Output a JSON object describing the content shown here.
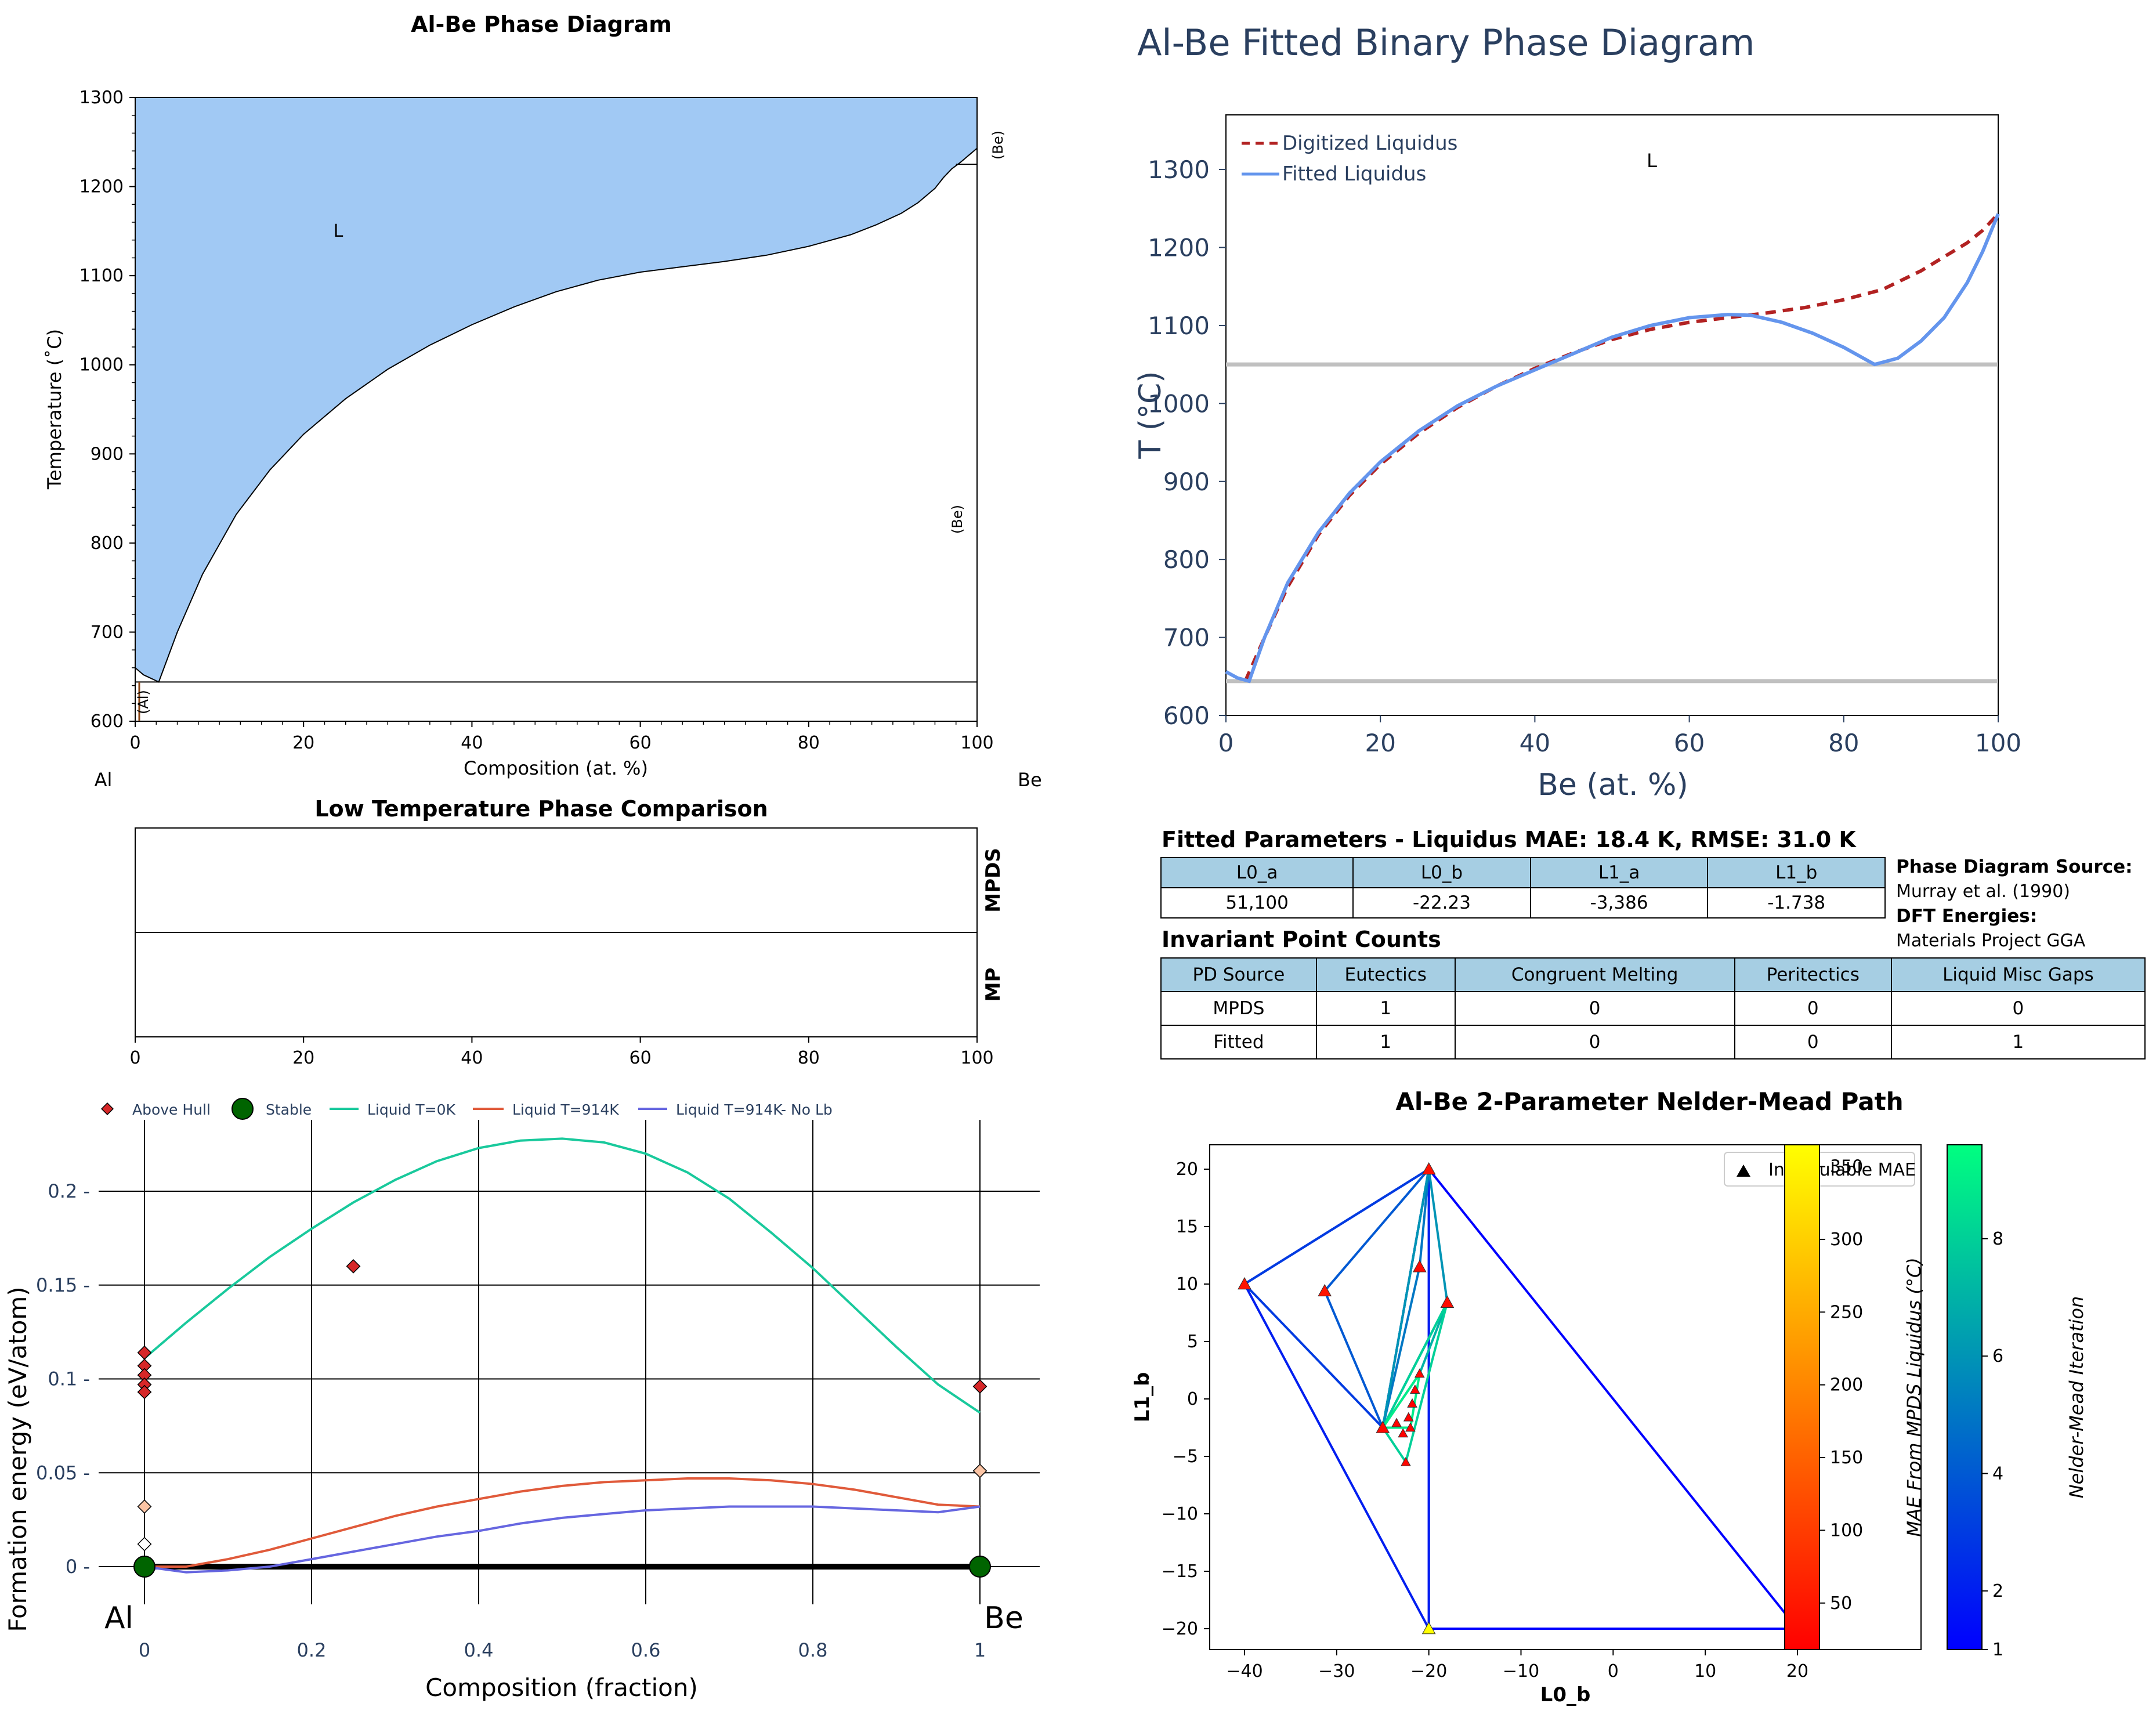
{
  "pd": {
    "title": "Al-Be Phase Diagram",
    "xlabel": "Composition (at. %)",
    "ylabel": "Temperature (˚C)",
    "left_element": "Al",
    "right_element": "Be",
    "liquid_label": "L",
    "al_label": "(Al)",
    "be_label": "(Be)",
    "colors": {
      "liquid": "#a1c9f4"
    }
  },
  "fit": {
    "title": "Al-Be Fitted Binary Phase Diagram",
    "xlabel": "Be (at. %)",
    "ylabel": "T (°C)",
    "liquid_label": "L",
    "colors": {
      "digitized": "#b22222",
      "fitted": "#6495ed",
      "invariant": "#c0c0c0"
    }
  },
  "lowt": {
    "title": "Low Temperature Phase Comparison",
    "row1": "MPDS",
    "row2": "MP"
  },
  "hull": {
    "xlabel": "Composition (fraction)",
    "ylabel": "Formation energy (eV/atom)",
    "left_element": "Al",
    "right_element": "Be",
    "colors": {
      "liquid0": "#19c99c",
      "liquid914": "#e05a3a",
      "nolb": "#6666e0",
      "stable": "#006400",
      "above": "#d62728"
    }
  },
  "nm": {
    "title": "Al-Be 2-Parameter Nelder-Mead Path",
    "xlabel": "L0_b",
    "ylabel": "L1_b",
    "legend": "Incalculable MAE",
    "cb1_label": "MAE From MPDS Liquidus (°C)",
    "cb2_label": "Nelder-Mead Iteration"
  },
  "params": {
    "title": "Fitted Parameters - Liquidus MAE: 18.4 K, RMSE: 31.0 K",
    "headers": [
      "L0_a",
      "L0_b",
      "L1_a",
      "L1_b"
    ],
    "values": [
      "51,100",
      "-22.23",
      "-3,386",
      "-1.738"
    ]
  },
  "source": {
    "pd_head": "Phase Diagram Source:",
    "pd_val": "Murray et al. (1990)",
    "dft_head": "DFT Energies:",
    "dft_val": "Materials Project GGA"
  },
  "inv": {
    "title": "Invariant Point Counts",
    "headers": [
      "PD Source",
      "Eutectics",
      "Congruent Melting",
      "Peritectics",
      "Liquid Misc Gaps"
    ],
    "rows": [
      [
        "MPDS",
        "1",
        "0",
        "0",
        "0"
      ],
      [
        "Fitted",
        "1",
        "0",
        "0",
        "1"
      ]
    ]
  },
  "chart_data": [
    {
      "type": "area",
      "title": "Al-Be Phase Diagram",
      "xlabel": "Composition (at. %)",
      "ylabel": "Temperature (˚C)",
      "xlim": [
        0,
        100
      ],
      "ylim": [
        600,
        1300
      ],
      "x_ticks": [
        0,
        20,
        40,
        60,
        80,
        100
      ],
      "y_ticks": [
        600,
        700,
        800,
        900,
        1000,
        1100,
        1200,
        1300
      ],
      "liquidus": {
        "x": [
          0,
          1,
          2.8,
          5,
          8,
          12,
          16,
          20,
          25,
          30,
          35,
          40,
          45,
          50,
          55,
          60,
          65,
          70,
          75,
          80,
          85,
          88,
          91,
          93,
          95,
          96,
          97,
          98,
          99,
          100
        ],
        "y": [
          660,
          652,
          644,
          700,
          765,
          832,
          882,
          922,
          962,
          995,
          1022,
          1045,
          1065,
          1082,
          1095,
          1104,
          1110,
          1116,
          1123,
          1133,
          1146,
          1157,
          1170,
          1182,
          1198,
          1210,
          1220,
          1227,
          1235,
          1243
        ]
      },
      "eutectic_T": 644,
      "be_transition_T": 1225
    },
    {
      "type": "line",
      "title": "Al-Be Fitted Binary Phase Diagram",
      "xlabel": "Be (at. %)",
      "ylabel": "T (°C)",
      "xlim": [
        0,
        100
      ],
      "ylim": [
        600,
        1370
      ],
      "x_ticks": [
        0,
        20,
        40,
        60,
        80,
        100
      ],
      "y_ticks": [
        600,
        700,
        800,
        900,
        1000,
        1100,
        1200,
        1300
      ],
      "legend": "top-left",
      "series": [
        {
          "name": "Digitized Liquidus",
          "style": "dashed",
          "x": [
            2.5,
            5,
            8,
            12,
            16,
            20,
            25,
            30,
            35,
            40,
            45,
            50,
            55,
            60,
            65,
            70,
            75,
            80,
            85,
            90,
            93,
            96,
            98,
            100
          ],
          "y": [
            644,
            700,
            765,
            832,
            882,
            922,
            962,
            995,
            1022,
            1045,
            1065,
            1082,
            1095,
            1104,
            1110,
            1116,
            1123,
            1133,
            1146,
            1170,
            1188,
            1206,
            1222,
            1243
          ]
        },
        {
          "name": "Fitted Liquidus",
          "style": "solid",
          "x": [
            0,
            1.5,
            3,
            5,
            8,
            12,
            16,
            20,
            25,
            30,
            35,
            40,
            45,
            50,
            55,
            60,
            65,
            68,
            72,
            76,
            80,
            84,
            87,
            90,
            93,
            96,
            98,
            100
          ],
          "y": [
            656,
            648,
            644,
            700,
            770,
            835,
            885,
            925,
            965,
            997,
            1022,
            1043,
            1064,
            1085,
            1100,
            1110,
            1114,
            1113,
            1104,
            1090,
            1072,
            1050,
            1058,
            1080,
            1110,
            1155,
            1195,
            1243
          ]
        }
      ],
      "invariants": [
        1050,
        644
      ]
    },
    {
      "type": "table",
      "title": "Low Temperature Phase Comparison",
      "rows": [
        "MPDS",
        "MP"
      ],
      "xlim": [
        0,
        100
      ],
      "x_ticks": [
        0,
        20,
        40,
        60,
        80,
        100
      ]
    },
    {
      "type": "scatter",
      "xlabel": "Composition (fraction)",
      "ylabel": "Formation energy (eV/atom)",
      "xlim": [
        -0.01,
        1.07
      ],
      "ylim": [
        -0.02,
        0.24
      ],
      "x_ticks": [
        0,
        0.2,
        0.4,
        0.6,
        0.8,
        1
      ],
      "x_tick_labels": [
        "0",
        "0.2",
        "0.4",
        "0.6",
        "0.8",
        "1"
      ],
      "y_ticks": [
        0,
        0.05,
        0.1,
        0.15,
        0.2
      ],
      "y_tick_labels": [
        "0",
        "0.05",
        "0.1",
        "0.15",
        "0.2"
      ],
      "legend": "top",
      "series": [
        {
          "name": "Above Hull",
          "type": "scatter",
          "points": [
            [
              0,
              0.114
            ],
            [
              0,
              0.107
            ],
            [
              0,
              0.102
            ],
            [
              0,
              0.097
            ],
            [
              0,
              0.093
            ],
            [
              0.25,
              0.16
            ],
            [
              1,
              0.096
            ],
            [
              0,
              0.032
            ],
            [
              0,
              0.012
            ],
            [
              1,
              0.051
            ]
          ]
        },
        {
          "name": "Stable",
          "type": "scatter",
          "points": [
            [
              0,
              0
            ],
            [
              1,
              0
            ]
          ]
        },
        {
          "name": "Liquid T=0K",
          "type": "line",
          "x": [
            0,
            0.05,
            0.1,
            0.15,
            0.2,
            0.25,
            0.3,
            0.35,
            0.4,
            0.45,
            0.5,
            0.55,
            0.6,
            0.65,
            0.7,
            0.75,
            0.8,
            0.85,
            0.9,
            0.95,
            1
          ],
          "y": [
            0.111,
            0.13,
            0.148,
            0.165,
            0.18,
            0.194,
            0.206,
            0.216,
            0.223,
            0.227,
            0.228,
            0.226,
            0.22,
            0.21,
            0.196,
            0.178,
            0.159,
            0.138,
            0.117,
            0.097,
            0.082
          ]
        },
        {
          "name": "Liquid T=914K",
          "type": "line",
          "x": [
            0,
            0.05,
            0.1,
            0.15,
            0.2,
            0.25,
            0.3,
            0.35,
            0.4,
            0.45,
            0.5,
            0.55,
            0.6,
            0.65,
            0.7,
            0.75,
            0.8,
            0.85,
            0.9,
            0.95,
            1
          ],
          "y": [
            0,
            0.0,
            0.004,
            0.009,
            0.015,
            0.021,
            0.027,
            0.032,
            0.036,
            0.04,
            0.043,
            0.045,
            0.046,
            0.047,
            0.047,
            0.046,
            0.044,
            0.041,
            0.037,
            0.033,
            0.032
          ]
        },
        {
          "name": "Liquid T=914K- No Lb",
          "type": "line",
          "x": [
            0,
            0.05,
            0.1,
            0.15,
            0.2,
            0.25,
            0.3,
            0.35,
            0.4,
            0.45,
            0.5,
            0.55,
            0.6,
            0.65,
            0.7,
            0.75,
            0.8,
            0.85,
            0.9,
            0.95,
            1
          ],
          "y": [
            0,
            -0.003,
            -0.002,
            0.0,
            0.004,
            0.008,
            0.012,
            0.016,
            0.019,
            0.023,
            0.026,
            0.028,
            0.03,
            0.031,
            0.032,
            0.032,
            0.032,
            0.031,
            0.03,
            0.029,
            0.032
          ]
        }
      ]
    },
    {
      "type": "line",
      "title": "Al-Be 2-Parameter Nelder-Mead Path",
      "xlabel": "L0_b",
      "ylabel": "L1_b",
      "xlim": [
        -44,
        24
      ],
      "ylim": [
        -22.2,
        22
      ],
      "x_ticks": [
        -40,
        -30,
        -20,
        -10,
        0,
        10,
        20
      ],
      "y_ticks": [
        -20,
        -15,
        -10,
        -5,
        0,
        5,
        10,
        15,
        20
      ],
      "legend": "top-right",
      "simplices": [
        {
          "iter": 1,
          "pts": [
            [
              -20,
              20
            ],
            [
              -20,
              -20
            ],
            [
              20,
              -20
            ]
          ]
        },
        {
          "iter": 2,
          "pts": [
            [
              -20,
              20
            ],
            [
              -20,
              -20
            ],
            [
              -40,
              10
            ]
          ]
        },
        {
          "iter": 3,
          "pts": [
            [
              -20,
              20
            ],
            [
              -40,
              10
            ],
            [
              -25,
              -2.5
            ]
          ]
        },
        {
          "iter": 4,
          "pts": [
            [
              -20,
              20
            ],
            [
              -25,
              -2.5
            ],
            [
              -31.3,
              9.4
            ]
          ]
        },
        {
          "iter": 5,
          "pts": [
            [
              -20,
              20
            ],
            [
              -25,
              -2.5
            ],
            [
              -21,
              11.5
            ]
          ]
        },
        {
          "iter": 6,
          "pts": [
            [
              -20,
              20
            ],
            [
              -25,
              -2.5
            ],
            [
              -18,
              8.4
            ]
          ]
        },
        {
          "iter": 7,
          "pts": [
            [
              -25,
              -2.5
            ],
            [
              -18,
              8.4
            ],
            [
              -21,
              2.2
            ]
          ]
        },
        {
          "iter": 8,
          "pts": [
            [
              -25,
              -2.5
            ],
            [
              -18,
              8.4
            ],
            [
              -22.5,
              -5.5
            ]
          ]
        },
        {
          "iter": 9,
          "pts": [
            [
              -25,
              -2.5
            ],
            [
              -21,
              2.2
            ],
            [
              -22,
              -2.5
            ]
          ]
        }
      ],
      "vertices": [
        {
          "x": -20,
          "y": 20,
          "mae": 40
        },
        {
          "x": -20,
          "y": -20,
          "mae": 365
        },
        {
          "x": 20,
          "y": -20,
          "mae": null
        },
        {
          "x": -40,
          "y": 10,
          "mae": 45
        },
        {
          "x": -25,
          "y": -2.5,
          "mae": 30
        },
        {
          "x": -31.3,
          "y": 9.4,
          "mae": 45
        },
        {
          "x": -21,
          "y": 11.5,
          "mae": 30
        },
        {
          "x": -18,
          "y": 8.4,
          "mae": 35
        },
        {
          "x": -21,
          "y": 2.2,
          "mae": 25
        },
        {
          "x": -22.5,
          "y": -5.5,
          "mae": 28
        },
        {
          "x": -22,
          "y": -2.5,
          "mae": 22
        },
        {
          "x": -23.5,
          "y": -2.1,
          "mae": 22
        },
        {
          "x": -22.2,
          "y": -1.6,
          "mae": 20
        },
        {
          "x": -21.8,
          "y": -0.4,
          "mae": 20
        },
        {
          "x": -22.8,
          "y": -3.0,
          "mae": 21
        },
        {
          "x": -21.5,
          "y": 0.8,
          "mae": 21
        }
      ],
      "colorbar_mae": {
        "range": [
          18,
          365
        ],
        "ticks": [
          50,
          100,
          150,
          200,
          250,
          300,
          350
        ]
      },
      "colorbar_iter": {
        "range": [
          1,
          9.6
        ],
        "ticks": [
          1,
          2,
          4,
          6,
          8
        ]
      }
    }
  ]
}
